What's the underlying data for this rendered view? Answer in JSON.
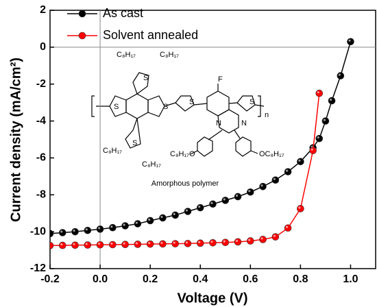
{
  "chart_data": {
    "type": "line",
    "xlabel": "Voltage (V)",
    "ylabel": "Current density (mA/cm²)",
    "xlim": [
      -0.2,
      1.1
    ],
    "ylim": [
      -12,
      2
    ],
    "xticks": [
      -0.2,
      {
        "value": 0,
        "label": "0.0"
      },
      0.2,
      0.4,
      0.6,
      0.8,
      {
        "value": 1,
        "label": "1.0"
      }
    ],
    "yticks": [
      2,
      0,
      -2,
      -4,
      -6,
      -8,
      -10,
      -12
    ],
    "legend": "top-left",
    "series": [
      {
        "name": "As cast",
        "color": "#000000",
        "x": [
          -0.2,
          -0.15,
          -0.1,
          -0.05,
          0,
          0.05,
          0.1,
          0.15,
          0.2,
          0.25,
          0.3,
          0.35,
          0.4,
          0.45,
          0.5,
          0.55,
          0.6,
          0.65,
          0.7,
          0.75,
          0.8,
          0.85,
          0.875,
          0.9,
          0.925,
          0.96,
          1.0
        ],
        "values": [
          -10.1,
          -10.05,
          -10.0,
          -9.93,
          -9.86,
          -9.78,
          -9.68,
          -9.57,
          -9.4,
          -9.25,
          -9.1,
          -8.9,
          -8.7,
          -8.5,
          -8.3,
          -8.1,
          -7.85,
          -7.55,
          -7.2,
          -6.75,
          -6.2,
          -5.45,
          -4.95,
          -4.0,
          -2.9,
          -1.55,
          0.3
        ]
      },
      {
        "name": "Solvent annealed",
        "color": "#ff0000",
        "x": [
          -0.2,
          -0.15,
          -0.1,
          -0.05,
          0,
          0.05,
          0.1,
          0.15,
          0.2,
          0.25,
          0.3,
          0.35,
          0.4,
          0.45,
          0.5,
          0.55,
          0.6,
          0.65,
          0.7,
          0.75,
          0.8,
          0.85,
          0.875
        ],
        "values": [
          -10.75,
          -10.74,
          -10.73,
          -10.72,
          -10.71,
          -10.7,
          -10.69,
          -10.68,
          -10.67,
          -10.66,
          -10.65,
          -10.64,
          -10.62,
          -10.6,
          -10.58,
          -10.55,
          -10.5,
          -10.42,
          -10.28,
          -9.8,
          -8.75,
          -5.6,
          -2.5
        ]
      }
    ],
    "annotations": [
      "C₈H₁₇",
      "C₈H₁₇",
      "S",
      "S",
      "S",
      "S",
      "S",
      "S",
      "F",
      "N",
      "N",
      "n",
      "C₈H₁₇",
      "C₈H₁₇",
      "C₈H₁₇O",
      "OC₈H₁₇",
      "Amorphous polymer"
    ]
  }
}
